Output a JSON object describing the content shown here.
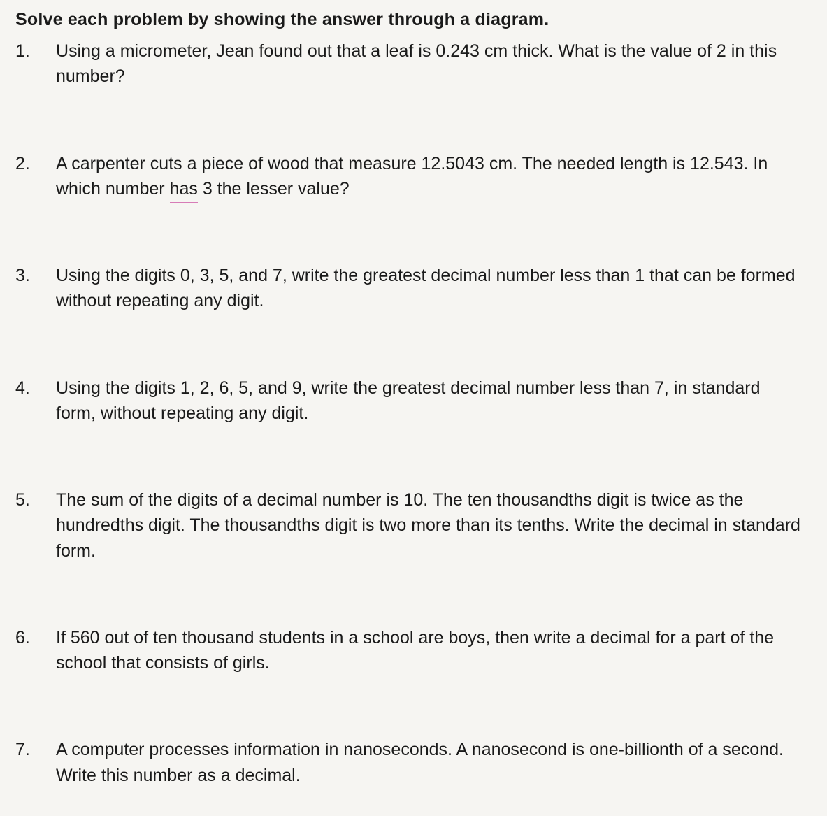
{
  "heading": "Solve each problem by showing the answer through a diagram.",
  "items": [
    {
      "num": "1.",
      "text": "Using a micrometer, Jean found out that a leaf is 0.243 cm thick. What is the value of 2 in this number?"
    },
    {
      "num": "2.",
      "text_pre": "A carpenter cuts a piece of wood that measure 12.5043 cm. The needed length is 12.543. In which number ",
      "underlined": "has",
      "text_post": " 3 the lesser value?"
    },
    {
      "num": "3.",
      "text": "Using the digits 0, 3, 5, and 7, write the greatest decimal number less than 1 that can be formed without repeating any digit."
    },
    {
      "num": "4.",
      "text": "Using the digits 1, 2, 6, 5, and 9, write the greatest decimal number less than 7, in standard form, without repeating any digit."
    },
    {
      "num": "5.",
      "text": "The sum of the digits of a decimal number is 10. The ten thousandths digit is twice as the hundredths digit. The thousandths digit is two more than its tenths. Write the decimal in standard form."
    },
    {
      "num": "6.",
      "text": "If 560 out of ten thousand students in a school are boys, then write a decimal for a part of the school that consists of girls."
    },
    {
      "num": "7.",
      "text": "A computer processes information in nanoseconds. A nanosecond is one-billionth of a second. Write this number as a decimal."
    }
  ]
}
